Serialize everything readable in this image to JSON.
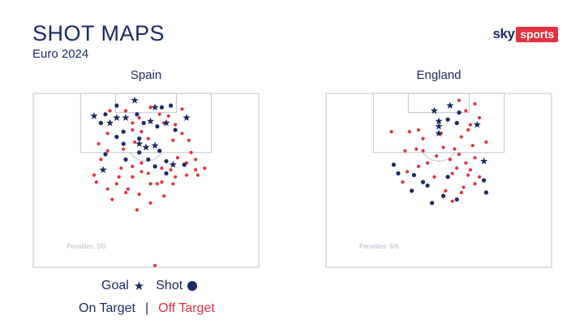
{
  "header": {
    "title": "SHOT MAPS",
    "subtitle": "Euro 2024"
  },
  "brand": {
    "sky": "sky",
    "sports": "sports"
  },
  "legend": {
    "goal_label": "Goal",
    "goal_icon": "star-icon",
    "shot_label": "Shot",
    "shot_icon": "dot-icon",
    "on_target": "On Target",
    "separator": "|",
    "off_target": "Off Target"
  },
  "colors": {
    "on_target": "#1b2a63",
    "off_target": "#e5313e",
    "pitch_lines": "#c9cdd9"
  },
  "chart_data": [
    {
      "type": "scatter",
      "title": "Spain",
      "penalties": "Penalties: 0/0",
      "xlim": [
        0,
        100
      ],
      "ylim": [
        0,
        100
      ],
      "axes": "x = across pitch width (0 left touchline, 100 right); y = distance from goal line (0 goal line, 100 halfway line)",
      "series": [
        {
          "name": "Goal",
          "target": "on",
          "marker": "star",
          "points": [
            [
              45,
              4
            ],
            [
              54,
              8
            ],
            [
              27,
              13
            ],
            [
              52,
              16
            ],
            [
              37,
              14
            ],
            [
              41,
              14
            ],
            [
              59,
              17
            ],
            [
              68,
              14
            ],
            [
              34,
              17
            ],
            [
              47,
              29
            ],
            [
              54,
              30
            ],
            [
              50,
              31
            ],
            [
              62,
              41
            ],
            [
              31,
              44
            ]
          ]
        },
        {
          "name": "Shot",
          "target": "on",
          "marker": "circle",
          "points": [
            [
              37,
              7
            ],
            [
              46,
              12
            ],
            [
              57,
              8
            ],
            [
              61,
              7
            ],
            [
              32,
              12
            ],
            [
              30,
              17
            ],
            [
              40,
              22
            ],
            [
              37,
              25
            ],
            [
              49,
              17
            ],
            [
              55,
              19
            ],
            [
              63,
              21
            ],
            [
              47,
              26
            ],
            [
              40,
              29
            ],
            [
              56,
              33
            ],
            [
              51,
              38
            ],
            [
              67,
              41
            ],
            [
              59,
              46
            ],
            [
              54,
              42
            ],
            [
              59,
              39
            ],
            [
              41,
              38
            ],
            [
              32,
              35
            ],
            [
              47,
              34
            ]
          ]
        },
        {
          "name": "Shot",
          "target": "off",
          "marker": "circle",
          "points": [
            [
              34,
              10
            ],
            [
              41,
              10
            ],
            [
              52,
              8
            ],
            [
              56,
              12
            ],
            [
              60,
              13
            ],
            [
              66,
              9
            ],
            [
              44,
              17
            ],
            [
              47,
              14
            ],
            [
              58,
              17
            ],
            [
              63,
              18
            ],
            [
              62,
              27
            ],
            [
              69,
              27
            ],
            [
              66,
              23
            ],
            [
              44,
              21
            ],
            [
              48,
              22
            ],
            [
              51,
              26
            ],
            [
              45,
              28
            ],
            [
              40,
              32
            ],
            [
              33,
              23
            ],
            [
              29,
              29
            ],
            [
              33,
              33
            ],
            [
              30,
              38
            ],
            [
              27,
              47
            ],
            [
              28,
              51
            ],
            [
              33,
              55
            ],
            [
              37,
              52
            ],
            [
              38,
              48
            ],
            [
              42,
              55
            ],
            [
              44,
              48
            ],
            [
              48,
              45
            ],
            [
              48,
              40
            ],
            [
              51,
              46
            ],
            [
              52,
              52
            ],
            [
              57,
              51
            ],
            [
              62,
              52
            ],
            [
              63,
              48
            ],
            [
              61,
              44
            ],
            [
              68,
              40
            ],
            [
              72,
              44
            ],
            [
              76,
              43
            ],
            [
              73,
              47
            ],
            [
              68,
              47
            ],
            [
              64,
              37
            ],
            [
              70,
              34
            ],
            [
              72,
              38
            ],
            [
              41,
              57
            ],
            [
              47,
              58
            ],
            [
              46,
              67
            ],
            [
              52,
              63
            ],
            [
              58,
              59
            ],
            [
              55,
              52
            ],
            [
              44,
              42
            ],
            [
              39,
              43
            ],
            [
              57,
              43
            ],
            [
              35,
              61
            ],
            [
              54,
              99
            ]
          ]
        }
      ]
    },
    {
      "type": "scatter",
      "title": "England",
      "penalties": "Penalties: 6/6",
      "xlim": [
        0,
        100
      ],
      "ylim": [
        0,
        100
      ],
      "axes": "x = across pitch width (0 left touchline, 100 right); y = distance from goal line (0 goal line, 100 halfway line)",
      "series": [
        {
          "name": "Goal",
          "target": "on",
          "marker": "star",
          "points": [
            [
              48,
              10
            ],
            [
              55,
              7
            ],
            [
              50,
              16
            ],
            [
              50,
              19
            ],
            [
              50,
              23
            ],
            [
              67,
              18
            ],
            [
              70,
              39
            ]
          ]
        },
        {
          "name": "Shot",
          "target": "on",
          "marker": "circle",
          "points": [
            [
              59,
              11
            ],
            [
              58,
              17
            ],
            [
              54,
              15
            ],
            [
              30,
              41
            ],
            [
              32,
              46
            ],
            [
              39,
              47
            ],
            [
              43,
              51
            ],
            [
              54,
              48
            ],
            [
              38,
              56
            ],
            [
              45,
              53
            ],
            [
              52,
              59
            ],
            [
              47,
              63
            ],
            [
              58,
              61
            ],
            [
              70,
              50
            ],
            [
              71,
              57
            ]
          ]
        },
        {
          "name": "Shot",
          "target": "off",
          "marker": "circle",
          "points": [
            [
              59,
              4
            ],
            [
              66,
              6
            ],
            [
              62,
              10
            ],
            [
              68,
              14
            ],
            [
              64,
              18
            ],
            [
              63,
              21
            ],
            [
              60,
              25
            ],
            [
              29,
              22
            ],
            [
              37,
              22
            ],
            [
              41,
              21
            ],
            [
              51,
              23
            ],
            [
              43,
              26
            ],
            [
              52,
              31
            ],
            [
              40,
              32
            ],
            [
              35,
              33
            ],
            [
              57,
              32
            ],
            [
              65,
              30
            ],
            [
              71,
              28
            ],
            [
              59,
              35
            ],
            [
              66,
              37
            ],
            [
              62,
              40
            ],
            [
              64,
              44
            ],
            [
              63,
              47
            ],
            [
              61,
              54
            ],
            [
              60,
              57
            ],
            [
              56,
              62
            ],
            [
              53,
              56
            ],
            [
              48,
              48
            ],
            [
              45,
              40
            ],
            [
              41,
              42
            ],
            [
              36,
              45
            ],
            [
              34,
              51
            ],
            [
              55,
              38
            ],
            [
              58,
              43
            ],
            [
              66,
              52
            ],
            [
              68,
              48
            ],
            [
              56,
              46
            ],
            [
              43,
              33
            ],
            [
              49,
              36
            ]
          ]
        }
      ]
    }
  ]
}
